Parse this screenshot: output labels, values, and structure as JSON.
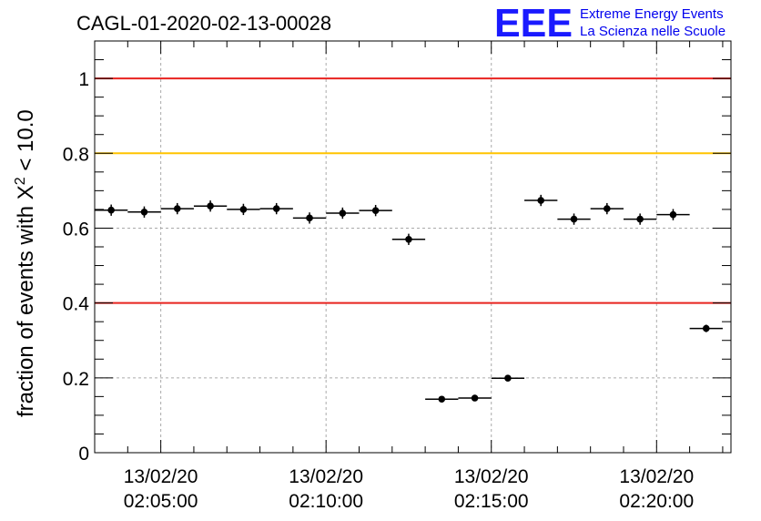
{
  "title": "CAGL-01-2020-02-13-00028",
  "logo": {
    "mark": "EEE",
    "line1": "Extreme Energy Events",
    "line2": "La Scienza nelle Scuole",
    "color": "#1a1aff"
  },
  "chart_data": {
    "type": "scatter",
    "title": "CAGL-01-2020-02-13-00028",
    "ylabel_prefix": "fraction of events with ",
    "ylabel_symbol": "X",
    "ylabel_sup": "2",
    "ylabel_suffix": " < 10.0",
    "xlabel": "",
    "ylim": [
      0,
      1.1
    ],
    "x_unit": "time (HH:MM:SS on 13/02/20)",
    "xlim": [
      "02:03:00",
      "02:22:15"
    ],
    "yticks": [
      {
        "value": 0,
        "label": "0"
      },
      {
        "value": 0.2,
        "label": "0.2"
      },
      {
        "value": 0.4,
        "label": "0.4"
      },
      {
        "value": 0.6,
        "label": "0.6"
      },
      {
        "value": 0.8,
        "label": "0.8"
      },
      {
        "value": 1,
        "label": "1"
      }
    ],
    "xticks": [
      {
        "time": "02:05:00",
        "date_label": "13/02/20",
        "time_label": "02:05:00"
      },
      {
        "time": "02:10:00",
        "date_label": "13/02/20",
        "time_label": "02:10:00"
      },
      {
        "time": "02:15:00",
        "date_label": "13/02/20",
        "time_label": "02:15:00"
      },
      {
        "time": "02:20:00",
        "date_label": "13/02/20",
        "time_label": "02:20:00"
      }
    ],
    "grid": true,
    "reference_lines": [
      {
        "y": 1.0,
        "color": "#e8231f"
      },
      {
        "y": 0.8,
        "color": "#ffc400"
      },
      {
        "y": 0.4,
        "color": "#e8231f"
      }
    ],
    "series": [
      {
        "marker_color": "#000000",
        "points": [
          {
            "start": "02:03:00",
            "end": "02:04:00",
            "y": 0.648,
            "err": 0.015
          },
          {
            "start": "02:04:00",
            "end": "02:05:00",
            "y": 0.643,
            "err": 0.015
          },
          {
            "start": "02:05:00",
            "end": "02:06:00",
            "y": 0.652,
            "err": 0.015
          },
          {
            "start": "02:06:00",
            "end": "02:07:00",
            "y": 0.659,
            "err": 0.015
          },
          {
            "start": "02:07:00",
            "end": "02:08:00",
            "y": 0.65,
            "err": 0.015
          },
          {
            "start": "02:08:00",
            "end": "02:09:00",
            "y": 0.652,
            "err": 0.015
          },
          {
            "start": "02:09:00",
            "end": "02:10:00",
            "y": 0.627,
            "err": 0.015
          },
          {
            "start": "02:10:00",
            "end": "02:11:00",
            "y": 0.64,
            "err": 0.015
          },
          {
            "start": "02:11:00",
            "end": "02:12:00",
            "y": 0.647,
            "err": 0.015
          },
          {
            "start": "02:12:00",
            "end": "02:13:00",
            "y": 0.57,
            "err": 0.015
          },
          {
            "start": "02:13:00",
            "end": "02:14:00",
            "y": 0.143,
            "err": 0.006
          },
          {
            "start": "02:14:00",
            "end": "02:15:00",
            "y": 0.146,
            "err": 0.006
          },
          {
            "start": "02:15:00",
            "end": "02:16:00",
            "y": 0.199,
            "err": 0.006
          },
          {
            "start": "02:16:00",
            "end": "02:17:00",
            "y": 0.674,
            "err": 0.015
          },
          {
            "start": "02:17:00",
            "end": "02:18:00",
            "y": 0.624,
            "err": 0.015
          },
          {
            "start": "02:18:00",
            "end": "02:19:00",
            "y": 0.652,
            "err": 0.015
          },
          {
            "start": "02:19:00",
            "end": "02:20:00",
            "y": 0.624,
            "err": 0.015
          },
          {
            "start": "02:20:00",
            "end": "02:21:00",
            "y": 0.636,
            "err": 0.015
          },
          {
            "start": "02:21:00",
            "end": "02:22:00",
            "y": 0.332,
            "err": 0.01
          }
        ]
      }
    ]
  }
}
